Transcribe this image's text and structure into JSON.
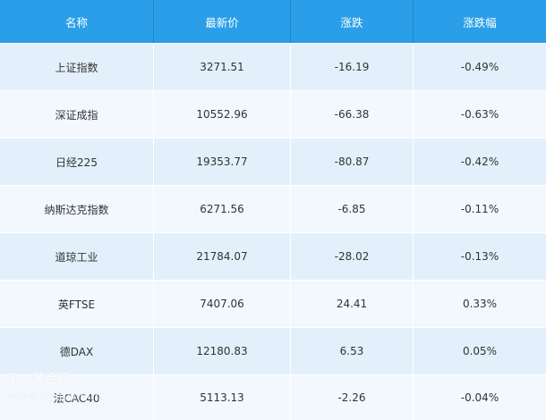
{
  "headers": [
    "名称",
    "最新价",
    "涨跌",
    "涨跌幅"
  ],
  "rows": [
    {
      "name": "上证指数",
      "price": "3271.51",
      "change": "-16.19",
      "pct": "-0.49%"
    },
    {
      "name": "深证成指",
      "price": "10552.96",
      "change": "-66.38",
      "pct": "-0.63%"
    },
    {
      "name": "日经225",
      "price": "19353.77",
      "change": "-80.87",
      "pct": "-0.42%"
    },
    {
      "name": "纳斯达克指数",
      "price": "6271.56",
      "change": "-6.85",
      "pct": "-0.11%"
    },
    {
      "name": "道琼工业",
      "price": "21784.07",
      "change": "-28.02",
      "pct": "-0.13%"
    },
    {
      "name": "英FTSE",
      "price": "7407.06",
      "change": "24.41",
      "pct": "0.33%"
    },
    {
      "name": "德DAX",
      "price": "12180.83",
      "change": "6.53",
      "pct": "0.05%"
    },
    {
      "name": "法CAC40",
      "price": "5113.13",
      "change": "-2.26",
      "pct": "-0.04%"
    }
  ],
  "watermark": {
    "line1": "第一黄金网",
    "line2": "www.dyhjw.com"
  },
  "colors": {
    "header_bg": "#2a9ee8",
    "row_odd": "#e3f0fb",
    "row_even": "#f2f8fe",
    "text": "#333333"
  }
}
